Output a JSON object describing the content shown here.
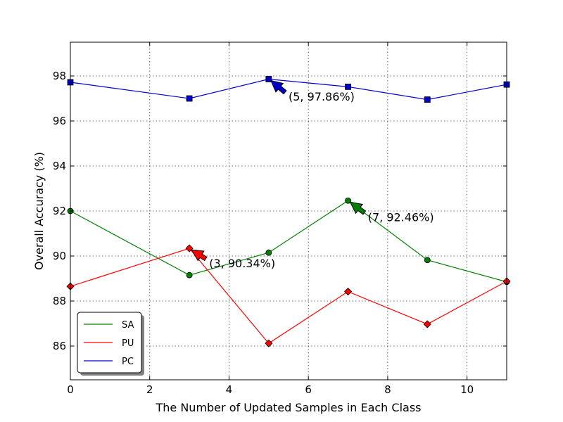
{
  "chart_data": {
    "type": "line",
    "xlabel": "The Number of Updated Samples in Each Class",
    "ylabel": "Overall Accuracy (%)",
    "xlim": [
      0,
      11
    ],
    "ylim": [
      84.5,
      99.5
    ],
    "xticks": [
      0,
      2,
      4,
      6,
      8,
      10
    ],
    "yticks": [
      86,
      88,
      90,
      92,
      94,
      96,
      98
    ],
    "grid": true,
    "legend_position": "lower-left",
    "x": [
      0,
      3,
      5,
      7,
      9,
      11
    ],
    "series": [
      {
        "name": "SA",
        "color": "#008000",
        "marker": "circle",
        "values": [
          92.0,
          89.15,
          90.15,
          92.46,
          89.82,
          88.85
        ]
      },
      {
        "name": "PU",
        "color": "#ff0000",
        "marker": "diamond",
        "values": [
          88.65,
          90.34,
          86.12,
          88.42,
          86.97,
          88.88
        ]
      },
      {
        "name": "PC",
        "color": "#0000cc",
        "marker": "square",
        "values": [
          97.72,
          97.0,
          97.86,
          97.52,
          96.95,
          97.62
        ]
      }
    ],
    "annotations": [
      {
        "text": "(5, 97.86%)",
        "series": "PC",
        "x": 5,
        "y": 97.86,
        "text_x": 5.5,
        "text_y": 96.9
      },
      {
        "text": "(7, 92.46%)",
        "series": "SA",
        "x": 7,
        "y": 92.46,
        "text_x": 7.5,
        "text_y": 91.55
      },
      {
        "text": "(3, 90.34%)",
        "series": "PU",
        "x": 3,
        "y": 90.34,
        "text_x": 3.5,
        "text_y": 89.5
      }
    ]
  }
}
